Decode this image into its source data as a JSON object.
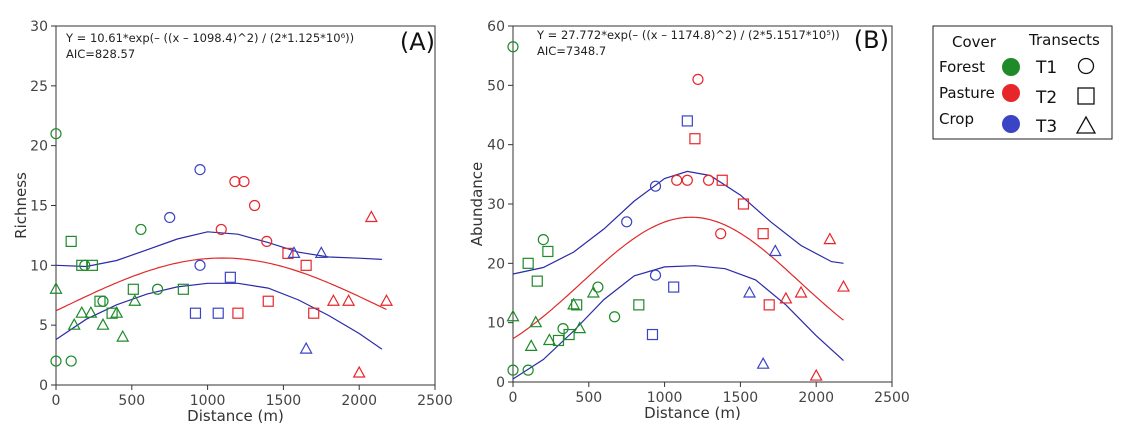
{
  "chart_data": [
    {
      "type": "scatter",
      "panel_label": "(A)",
      "xlabel": "Distance (m)",
      "ylabel": "Richness",
      "xlim": [
        0,
        2500
      ],
      "ylim": [
        0,
        30
      ],
      "xticks": [
        0,
        500,
        1000,
        1500,
        2000,
        2500
      ],
      "yticks": [
        0,
        5,
        10,
        15,
        20,
        25,
        30
      ],
      "equation": "Y = 10.61*exp(– ((x – 1098.4)^2) / (2*1.125*10⁶))",
      "aic": "AIC=828.57",
      "fit": {
        "a": 10.61,
        "mu": 1098.4,
        "var": 1125000
      },
      "ci_upper": [
        [
          0,
          10.0
        ],
        [
          200,
          9.9
        ],
        [
          400,
          10.4
        ],
        [
          600,
          11.3
        ],
        [
          800,
          12.2
        ],
        [
          1000,
          12.8
        ],
        [
          1200,
          12.6
        ],
        [
          1400,
          11.9
        ],
        [
          1600,
          11.1
        ],
        [
          1800,
          10.7
        ],
        [
          2000,
          10.6
        ],
        [
          2150,
          10.5
        ]
      ],
      "ci_lower": [
        [
          0,
          3.8
        ],
        [
          200,
          5.5
        ],
        [
          400,
          6.7
        ],
        [
          600,
          7.6
        ],
        [
          800,
          8.2
        ],
        [
          1000,
          8.5
        ],
        [
          1200,
          8.5
        ],
        [
          1400,
          8.1
        ],
        [
          1600,
          7.1
        ],
        [
          1800,
          5.8
        ],
        [
          2000,
          4.3
        ],
        [
          2150,
          3.0
        ]
      ],
      "points": [
        {
          "x": 0,
          "y": 21,
          "cover": "Forest",
          "transect": "T1"
        },
        {
          "x": 0,
          "y": 2,
          "cover": "Forest",
          "transect": "T1"
        },
        {
          "x": 100,
          "y": 2,
          "cover": "Forest",
          "transect": "T1"
        },
        {
          "x": 190,
          "y": 10,
          "cover": "Forest",
          "transect": "T1"
        },
        {
          "x": 310,
          "y": 7,
          "cover": "Forest",
          "transect": "T1"
        },
        {
          "x": 560,
          "y": 13,
          "cover": "Forest",
          "transect": "T1"
        },
        {
          "x": 670,
          "y": 8,
          "cover": "Forest",
          "transect": "T1"
        },
        {
          "x": 100,
          "y": 12,
          "cover": "Forest",
          "transect": "T2"
        },
        {
          "x": 170,
          "y": 10,
          "cover": "Forest",
          "transect": "T2"
        },
        {
          "x": 240,
          "y": 10,
          "cover": "Forest",
          "transect": "T2"
        },
        {
          "x": 290,
          "y": 7,
          "cover": "Forest",
          "transect": "T2"
        },
        {
          "x": 370,
          "y": 6,
          "cover": "Forest",
          "transect": "T2"
        },
        {
          "x": 510,
          "y": 8,
          "cover": "Forest",
          "transect": "T2"
        },
        {
          "x": 840,
          "y": 8,
          "cover": "Forest",
          "transect": "T2"
        },
        {
          "x": 0,
          "y": 8,
          "cover": "Forest",
          "transect": "T3"
        },
        {
          "x": 120,
          "y": 5,
          "cover": "Forest",
          "transect": "T3"
        },
        {
          "x": 170,
          "y": 6,
          "cover": "Forest",
          "transect": "T3"
        },
        {
          "x": 230,
          "y": 6,
          "cover": "Forest",
          "transect": "T3"
        },
        {
          "x": 310,
          "y": 5,
          "cover": "Forest",
          "transect": "T3"
        },
        {
          "x": 400,
          "y": 6,
          "cover": "Forest",
          "transect": "T3"
        },
        {
          "x": 440,
          "y": 4,
          "cover": "Forest",
          "transect": "T3"
        },
        {
          "x": 520,
          "y": 7,
          "cover": "Forest",
          "transect": "T3"
        },
        {
          "x": 1090,
          "y": 13,
          "cover": "Pasture",
          "transect": "T1"
        },
        {
          "x": 1180,
          "y": 17,
          "cover": "Pasture",
          "transect": "T1"
        },
        {
          "x": 1240,
          "y": 17,
          "cover": "Pasture",
          "transect": "T1"
        },
        {
          "x": 1310,
          "y": 15,
          "cover": "Pasture",
          "transect": "T1"
        },
        {
          "x": 1390,
          "y": 12,
          "cover": "Pasture",
          "transect": "T1"
        },
        {
          "x": 1200,
          "y": 6,
          "cover": "Pasture",
          "transect": "T2"
        },
        {
          "x": 1400,
          "y": 7,
          "cover": "Pasture",
          "transect": "T2"
        },
        {
          "x": 1530,
          "y": 11,
          "cover": "Pasture",
          "transect": "T2"
        },
        {
          "x": 1650,
          "y": 10,
          "cover": "Pasture",
          "transect": "T2"
        },
        {
          "x": 1700,
          "y": 6,
          "cover": "Pasture",
          "transect": "T2"
        },
        {
          "x": 1830,
          "y": 7,
          "cover": "Pasture",
          "transect": "T3"
        },
        {
          "x": 1930,
          "y": 7,
          "cover": "Pasture",
          "transect": "T3"
        },
        {
          "x": 2000,
          "y": 1,
          "cover": "Pasture",
          "transect": "T3"
        },
        {
          "x": 2080,
          "y": 14,
          "cover": "Pasture",
          "transect": "T3"
        },
        {
          "x": 2180,
          "y": 7,
          "cover": "Pasture",
          "transect": "T3"
        },
        {
          "x": 750,
          "y": 14,
          "cover": "Crop",
          "transect": "T1"
        },
        {
          "x": 950,
          "y": 18,
          "cover": "Crop",
          "transect": "T1"
        },
        {
          "x": 950,
          "y": 10,
          "cover": "Crop",
          "transect": "T1"
        },
        {
          "x": 920,
          "y": 6,
          "cover": "Crop",
          "transect": "T2"
        },
        {
          "x": 1070,
          "y": 6,
          "cover": "Crop",
          "transect": "T2"
        },
        {
          "x": 1150,
          "y": 9,
          "cover": "Crop",
          "transect": "T2"
        },
        {
          "x": 1570,
          "y": 11,
          "cover": "Crop",
          "transect": "T3"
        },
        {
          "x": 1650,
          "y": 3,
          "cover": "Crop",
          "transect": "T3"
        },
        {
          "x": 1750,
          "y": 11,
          "cover": "Crop",
          "transect": "T3"
        }
      ]
    },
    {
      "type": "scatter",
      "panel_label": "(B)",
      "xlabel": "Distance (m)",
      "ylabel": "Abundance",
      "xlim": [
        0,
        2500
      ],
      "ylim": [
        0,
        60
      ],
      "xticks": [
        0,
        500,
        1000,
        1500,
        2000,
        2500
      ],
      "yticks": [
        0,
        10,
        20,
        30,
        40,
        50,
        60
      ],
      "equation": "Y = 27.772*exp(– ((x – 1174.8)^2) / (2*5.1517*10⁵))",
      "aic": "AIC=7348.7",
      "fit": {
        "a": 27.772,
        "mu": 1174.8,
        "var": 515170
      },
      "ci_upper": [
        [
          0,
          18.2
        ],
        [
          200,
          19.3
        ],
        [
          400,
          21.9
        ],
        [
          600,
          25.8
        ],
        [
          800,
          30.5
        ],
        [
          1000,
          34.3
        ],
        [
          1150,
          35.5
        ],
        [
          1300,
          34.8
        ],
        [
          1500,
          31.5
        ],
        [
          1700,
          27.0
        ],
        [
          1900,
          23.0
        ],
        [
          2100,
          20.3
        ],
        [
          2180,
          20.0
        ]
      ],
      "ci_lower": [
        [
          0,
          0.5
        ],
        [
          200,
          3.8
        ],
        [
          400,
          8.6
        ],
        [
          600,
          13.9
        ],
        [
          800,
          17.9
        ],
        [
          1000,
          19.4
        ],
        [
          1200,
          19.6
        ],
        [
          1400,
          19.1
        ],
        [
          1600,
          17.2
        ],
        [
          1800,
          13.0
        ],
        [
          2000,
          7.8
        ],
        [
          2180,
          3.6
        ]
      ],
      "points": [
        {
          "x": 0,
          "y": 56.5,
          "cover": "Forest",
          "transect": "T1"
        },
        {
          "x": 0,
          "y": 2,
          "cover": "Forest",
          "transect": "T1"
        },
        {
          "x": 100,
          "y": 2,
          "cover": "Forest",
          "transect": "T1"
        },
        {
          "x": 200,
          "y": 24,
          "cover": "Forest",
          "transect": "T1"
        },
        {
          "x": 330,
          "y": 9,
          "cover": "Forest",
          "transect": "T1"
        },
        {
          "x": 560,
          "y": 16,
          "cover": "Forest",
          "transect": "T1"
        },
        {
          "x": 670,
          "y": 11,
          "cover": "Forest",
          "transect": "T1"
        },
        {
          "x": 100,
          "y": 20,
          "cover": "Forest",
          "transect": "T2"
        },
        {
          "x": 160,
          "y": 17,
          "cover": "Forest",
          "transect": "T2"
        },
        {
          "x": 230,
          "y": 22,
          "cover": "Forest",
          "transect": "T2"
        },
        {
          "x": 300,
          "y": 7,
          "cover": "Forest",
          "transect": "T2"
        },
        {
          "x": 370,
          "y": 8,
          "cover": "Forest",
          "transect": "T2"
        },
        {
          "x": 420,
          "y": 13,
          "cover": "Forest",
          "transect": "T2"
        },
        {
          "x": 830,
          "y": 13,
          "cover": "Forest",
          "transect": "T2"
        },
        {
          "x": 0,
          "y": 11,
          "cover": "Forest",
          "transect": "T3"
        },
        {
          "x": 120,
          "y": 6,
          "cover": "Forest",
          "transect": "T3"
        },
        {
          "x": 150,
          "y": 10,
          "cover": "Forest",
          "transect": "T3"
        },
        {
          "x": 240,
          "y": 7,
          "cover": "Forest",
          "transect": "T3"
        },
        {
          "x": 400,
          "y": 13,
          "cover": "Forest",
          "transect": "T3"
        },
        {
          "x": 440,
          "y": 9,
          "cover": "Forest",
          "transect": "T3"
        },
        {
          "x": 530,
          "y": 15,
          "cover": "Forest",
          "transect": "T3"
        },
        {
          "x": 1080,
          "y": 34,
          "cover": "Pasture",
          "transect": "T1"
        },
        {
          "x": 1150,
          "y": 34,
          "cover": "Pasture",
          "transect": "T1"
        },
        {
          "x": 1220,
          "y": 51,
          "cover": "Pasture",
          "transect": "T1"
        },
        {
          "x": 1290,
          "y": 34,
          "cover": "Pasture",
          "transect": "T1"
        },
        {
          "x": 1370,
          "y": 25,
          "cover": "Pasture",
          "transect": "T1"
        },
        {
          "x": 1200,
          "y": 41,
          "cover": "Pasture",
          "transect": "T2"
        },
        {
          "x": 1380,
          "y": 34,
          "cover": "Pasture",
          "transect": "T2"
        },
        {
          "x": 1520,
          "y": 30,
          "cover": "Pasture",
          "transect": "T2"
        },
        {
          "x": 1650,
          "y": 25,
          "cover": "Pasture",
          "transect": "T2"
        },
        {
          "x": 1690,
          "y": 13,
          "cover": "Pasture",
          "transect": "T2"
        },
        {
          "x": 1800,
          "y": 14,
          "cover": "Pasture",
          "transect": "T3"
        },
        {
          "x": 1900,
          "y": 15,
          "cover": "Pasture",
          "transect": "T3"
        },
        {
          "x": 2000,
          "y": 1,
          "cover": "Pasture",
          "transect": "T3"
        },
        {
          "x": 2090,
          "y": 24,
          "cover": "Pasture",
          "transect": "T3"
        },
        {
          "x": 2180,
          "y": 16,
          "cover": "Pasture",
          "transect": "T3"
        },
        {
          "x": 750,
          "y": 27,
          "cover": "Crop",
          "transect": "T1"
        },
        {
          "x": 940,
          "y": 33,
          "cover": "Crop",
          "transect": "T1"
        },
        {
          "x": 940,
          "y": 18,
          "cover": "Crop",
          "transect": "T1"
        },
        {
          "x": 1150,
          "y": 44,
          "cover": "Crop",
          "transect": "T2"
        },
        {
          "x": 1060,
          "y": 16,
          "cover": "Crop",
          "transect": "T2"
        },
        {
          "x": 920,
          "y": 8,
          "cover": "Crop",
          "transect": "T2"
        },
        {
          "x": 1560,
          "y": 15,
          "cover": "Crop",
          "transect": "T3"
        },
        {
          "x": 1650,
          "y": 3,
          "cover": "Crop",
          "transect": "T3"
        },
        {
          "x": 1730,
          "y": 22,
          "cover": "Crop",
          "transect": "T3"
        }
      ]
    }
  ],
  "legend": {
    "cover_title": "Cover",
    "transects_title": "Transects",
    "covers": [
      {
        "name": "Forest",
        "color": "#1f8a2a"
      },
      {
        "name": "Pasture",
        "color": "#e8262a"
      },
      {
        "name": "Crop",
        "color": "#3a44c4"
      }
    ],
    "transects": [
      {
        "name": "T1",
        "shape": "circle"
      },
      {
        "name": "T2",
        "shape": "square"
      },
      {
        "name": "T3",
        "shape": "triangle"
      }
    ]
  },
  "colors": {
    "forest": "#1f8a2a",
    "pasture": "#e8262a",
    "crop": "#3a44c4",
    "fit_line": "#e02a2a",
    "ci_line": "#2a2aa8"
  }
}
